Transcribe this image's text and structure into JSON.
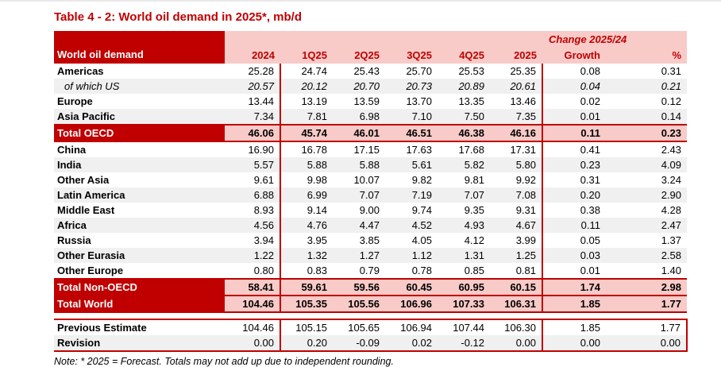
{
  "page": {
    "title": "Table 4 - 2: World oil demand in 2025*, mb/d",
    "note": "Note: * 2025 = Forecast. Totals may not add up due to independent rounding."
  },
  "table": {
    "corner_label": "World oil demand",
    "change_header": "Change 2025/24",
    "columns": [
      "2024",
      "1Q25",
      "2Q25",
      "3Q25",
      "4Q25",
      "2025",
      "Growth",
      "%"
    ],
    "body_rows": [
      {
        "label": "Americas",
        "style": "normal",
        "values": [
          "25.28",
          "24.74",
          "25.43",
          "25.70",
          "25.53",
          "25.35",
          "0.08",
          "0.31"
        ]
      },
      {
        "label": "of which US",
        "style": "italic",
        "values": [
          "20.57",
          "20.12",
          "20.70",
          "20.73",
          "20.89",
          "20.61",
          "0.04",
          "0.21"
        ]
      },
      {
        "label": "Europe",
        "style": "normal",
        "values": [
          "13.44",
          "13.19",
          "13.59",
          "13.70",
          "13.35",
          "13.46",
          "0.02",
          "0.12"
        ]
      },
      {
        "label": "Asia Pacific",
        "style": "normal",
        "values": [
          "7.34",
          "7.81",
          "6.98",
          "7.10",
          "7.50",
          "7.35",
          "0.01",
          "0.14"
        ]
      },
      {
        "label": "Total OECD",
        "style": "total",
        "values": [
          "46.06",
          "45.74",
          "46.01",
          "46.51",
          "46.38",
          "46.16",
          "0.11",
          "0.23"
        ]
      },
      {
        "label": "China",
        "style": "normal",
        "values": [
          "16.90",
          "16.78",
          "17.15",
          "17.63",
          "17.68",
          "17.31",
          "0.41",
          "2.43"
        ]
      },
      {
        "label": "India",
        "style": "normal",
        "values": [
          "5.57",
          "5.88",
          "5.88",
          "5.61",
          "5.82",
          "5.80",
          "0.23",
          "4.09"
        ]
      },
      {
        "label": "Other Asia",
        "style": "normal",
        "values": [
          "9.61",
          "9.98",
          "10.07",
          "9.82",
          "9.81",
          "9.92",
          "0.31",
          "3.24"
        ]
      },
      {
        "label": "Latin America",
        "style": "normal",
        "values": [
          "6.88",
          "6.99",
          "7.07",
          "7.19",
          "7.07",
          "7.08",
          "0.20",
          "2.90"
        ]
      },
      {
        "label": "Middle East",
        "style": "normal",
        "values": [
          "8.93",
          "9.14",
          "9.00",
          "9.74",
          "9.35",
          "9.31",
          "0.38",
          "4.28"
        ]
      },
      {
        "label": "Africa",
        "style": "normal",
        "values": [
          "4.56",
          "4.76",
          "4.47",
          "4.52",
          "4.93",
          "4.67",
          "0.11",
          "2.47"
        ]
      },
      {
        "label": "Russia",
        "style": "normal",
        "values": [
          "3.94",
          "3.95",
          "3.85",
          "4.05",
          "4.12",
          "3.99",
          "0.05",
          "1.37"
        ]
      },
      {
        "label": "Other Eurasia",
        "style": "normal",
        "values": [
          "1.22",
          "1.32",
          "1.27",
          "1.12",
          "1.31",
          "1.25",
          "0.03",
          "2.58"
        ]
      },
      {
        "label": "Other Europe",
        "style": "normal",
        "values": [
          "0.80",
          "0.83",
          "0.79",
          "0.78",
          "0.85",
          "0.81",
          "0.01",
          "1.40"
        ]
      },
      {
        "label": "Total Non-OECD",
        "style": "total",
        "values": [
          "58.41",
          "59.61",
          "59.56",
          "60.45",
          "60.95",
          "60.15",
          "1.74",
          "2.98"
        ]
      },
      {
        "label": "Total World",
        "style": "total",
        "values": [
          "104.46",
          "105.35",
          "105.56",
          "106.96",
          "107.33",
          "106.31",
          "1.85",
          "1.77"
        ]
      }
    ],
    "estimate_rows": [
      {
        "label": "Previous Estimate",
        "style": "normal",
        "values": [
          "104.46",
          "105.15",
          "105.65",
          "106.94",
          "107.44",
          "106.30",
          "1.85",
          "1.77"
        ]
      },
      {
        "label": "Revision",
        "style": "normal",
        "values": [
          "0.00",
          "0.20",
          "-0.09",
          "0.02",
          "-0.12",
          "0.00",
          "0.00",
          "0.00"
        ]
      }
    ]
  },
  "colors": {
    "dark_red": "#C00000",
    "pink": "#F8CBC8",
    "stripe_gray": "#F0F0F0"
  }
}
